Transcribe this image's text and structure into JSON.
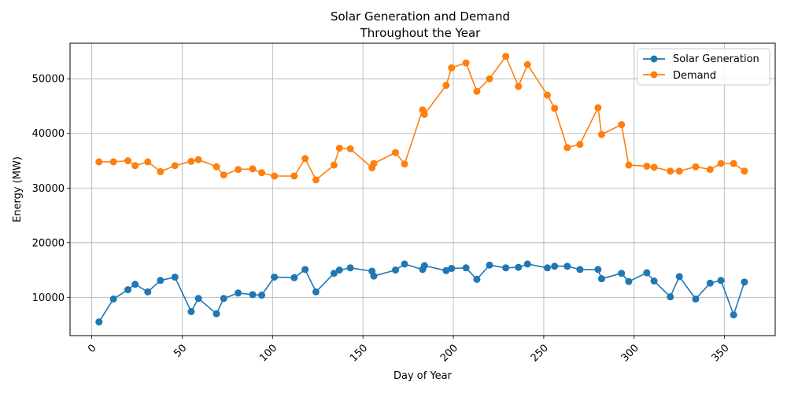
{
  "chart_data": {
    "type": "line",
    "title_lines": [
      "Solar Generation and Demand",
      "Throughout the Year"
    ],
    "xlabel": "Day of Year",
    "ylabel": "Energy (MW)",
    "xlim": [
      -12,
      378
    ],
    "ylim": [
      3000,
      56500
    ],
    "x_ticks": [
      0,
      50,
      100,
      150,
      200,
      250,
      300,
      350
    ],
    "y_ticks": [
      10000,
      20000,
      30000,
      40000,
      50000
    ],
    "grid": true,
    "legend_position": "top-right",
    "series": [
      {
        "name": "Solar Generation",
        "color": "#1f77b4",
        "x": [
          4,
          12,
          20,
          24,
          31,
          38,
          46,
          55,
          59,
          69,
          73,
          81,
          89,
          94,
          101,
          112,
          118,
          124,
          134,
          137,
          143,
          155,
          156,
          168,
          173,
          183,
          184,
          196,
          199,
          207,
          213,
          220,
          229,
          236,
          241,
          252,
          256,
          263,
          270,
          280,
          282,
          293,
          297,
          307,
          311,
          320,
          325,
          334,
          342,
          348,
          355,
          361
        ],
        "y": [
          5500,
          9700,
          11400,
          12400,
          11000,
          13100,
          13700,
          7400,
          9800,
          7000,
          9800,
          10800,
          10500,
          10400,
          13700,
          13600,
          15100,
          11000,
          14400,
          15000,
          15400,
          14800,
          13900,
          15000,
          16100,
          15100,
          15800,
          14900,
          15300,
          15400,
          13300,
          15900,
          15400,
          15500,
          16100,
          15400,
          15700,
          15700,
          15100,
          15100,
          13400,
          14400,
          12900,
          14500,
          13000,
          10100,
          13800,
          9700,
          12600,
          13100,
          6800,
          12800
        ]
      },
      {
        "name": "Demand",
        "color": "#ff7f0e",
        "x": [
          4,
          12,
          20,
          24,
          31,
          38,
          46,
          55,
          59,
          69,
          73,
          81,
          89,
          94,
          101,
          112,
          118,
          124,
          134,
          137,
          143,
          155,
          156,
          168,
          173,
          183,
          184,
          196,
          199,
          207,
          213,
          220,
          229,
          236,
          241,
          252,
          256,
          263,
          270,
          280,
          282,
          293,
          297,
          307,
          311,
          320,
          325,
          334,
          342,
          348,
          355,
          361
        ],
        "y": [
          34800,
          34800,
          35000,
          34100,
          34800,
          33000,
          34100,
          34900,
          35200,
          33900,
          32400,
          33400,
          33500,
          32800,
          32200,
          32200,
          35400,
          31500,
          34200,
          37300,
          37200,
          33700,
          34500,
          36500,
          34400,
          44300,
          43500,
          48800,
          52000,
          52900,
          47700,
          50000,
          54100,
          48600,
          52600,
          47000,
          44600,
          37400,
          38000,
          44700,
          39800,
          41600,
          34200,
          34000,
          33800,
          33100,
          33100,
          33900,
          33400,
          34500,
          34500,
          33100
        ]
      }
    ]
  }
}
